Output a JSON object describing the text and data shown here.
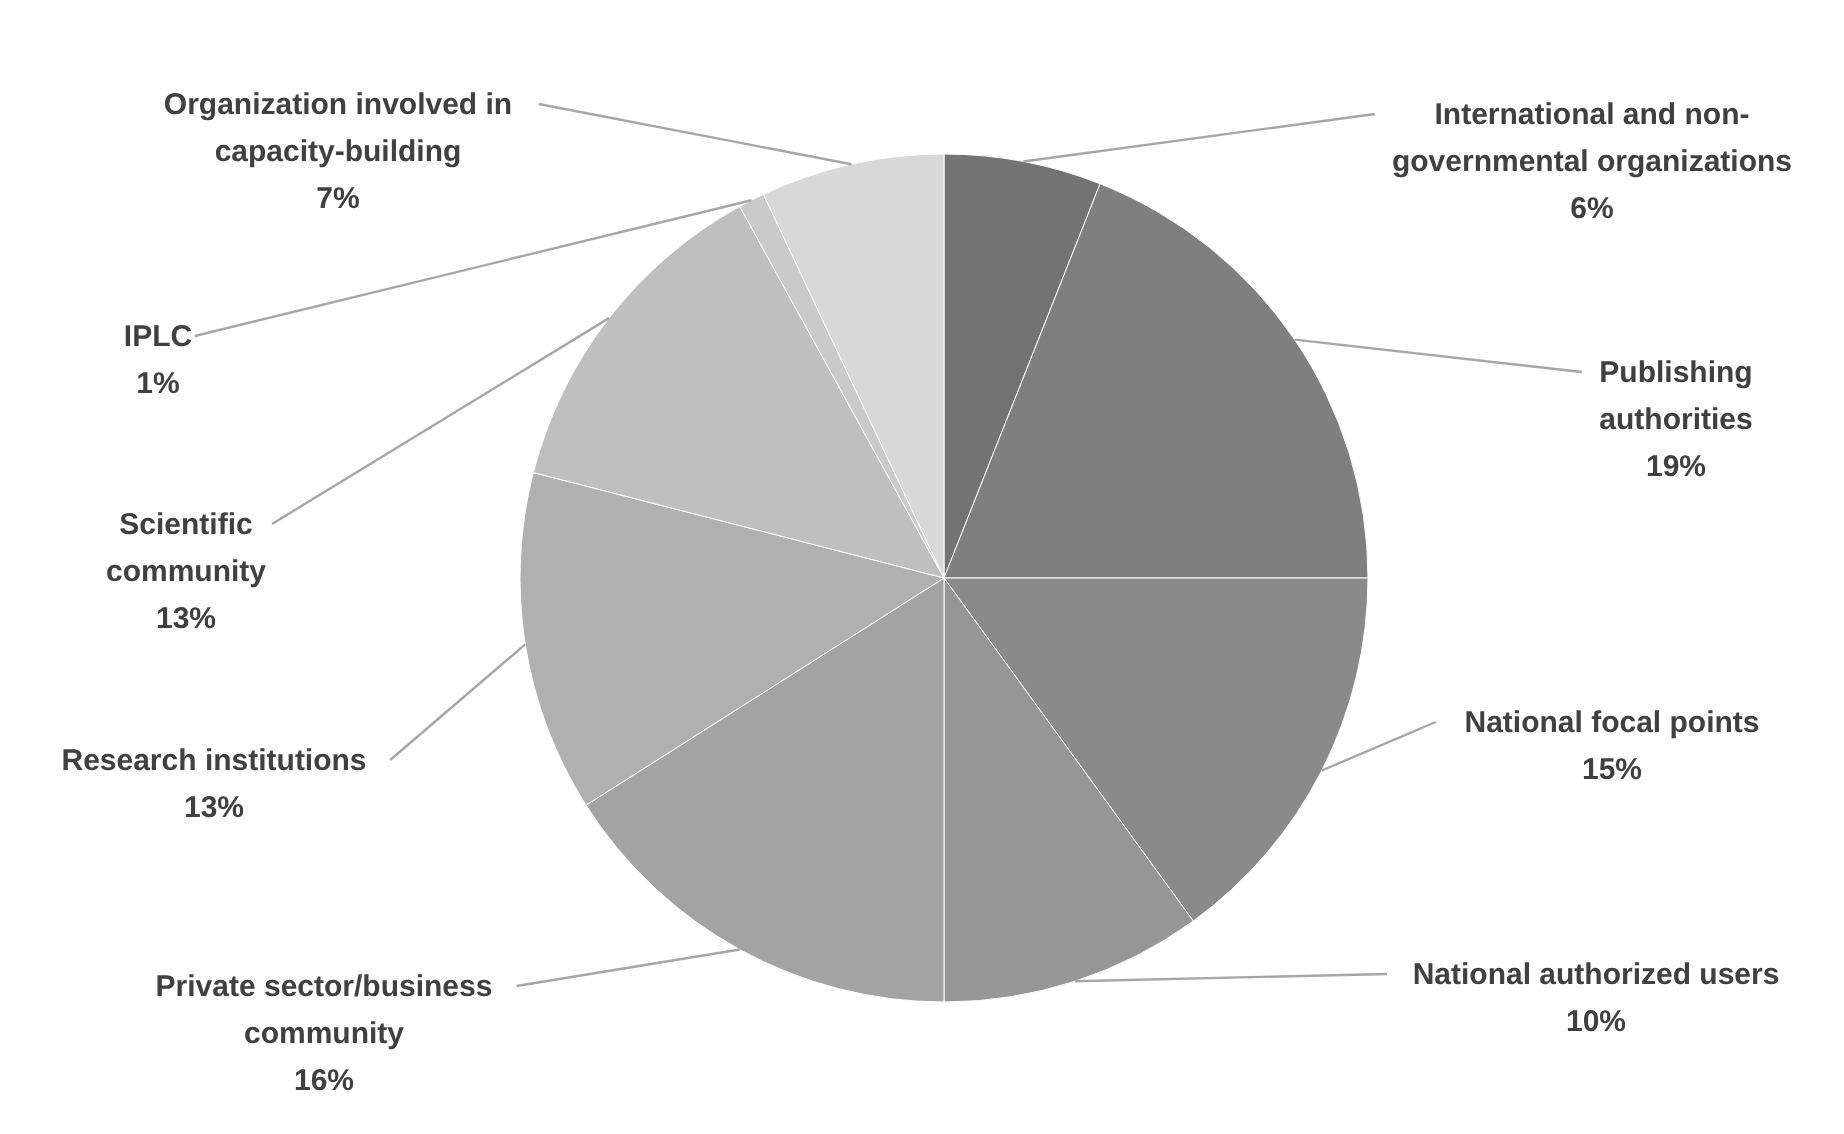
{
  "chart_data": {
    "type": "pie",
    "categories": [
      "International and non-governmental organizations",
      "Publishing authorities",
      "National focal points",
      "National authorized users",
      "Private sector/business community",
      "Research institutions",
      "Scientific community",
      "IPLC",
      "Organization involved in capacity-building"
    ],
    "values": [
      6,
      19,
      15,
      10,
      16,
      13,
      13,
      1,
      7
    ],
    "value_labels": [
      "6%",
      "19%",
      "15%",
      "10%",
      "16%",
      "13%",
      "13%",
      "1%",
      "7%"
    ],
    "colors": [
      "#737373",
      "#7f7f7f",
      "#8a8a8a",
      "#969696",
      "#a3a3a3",
      "#b0b0b0",
      "#bfbfbf",
      "#cacaca",
      "#d8d8d8"
    ]
  }
}
